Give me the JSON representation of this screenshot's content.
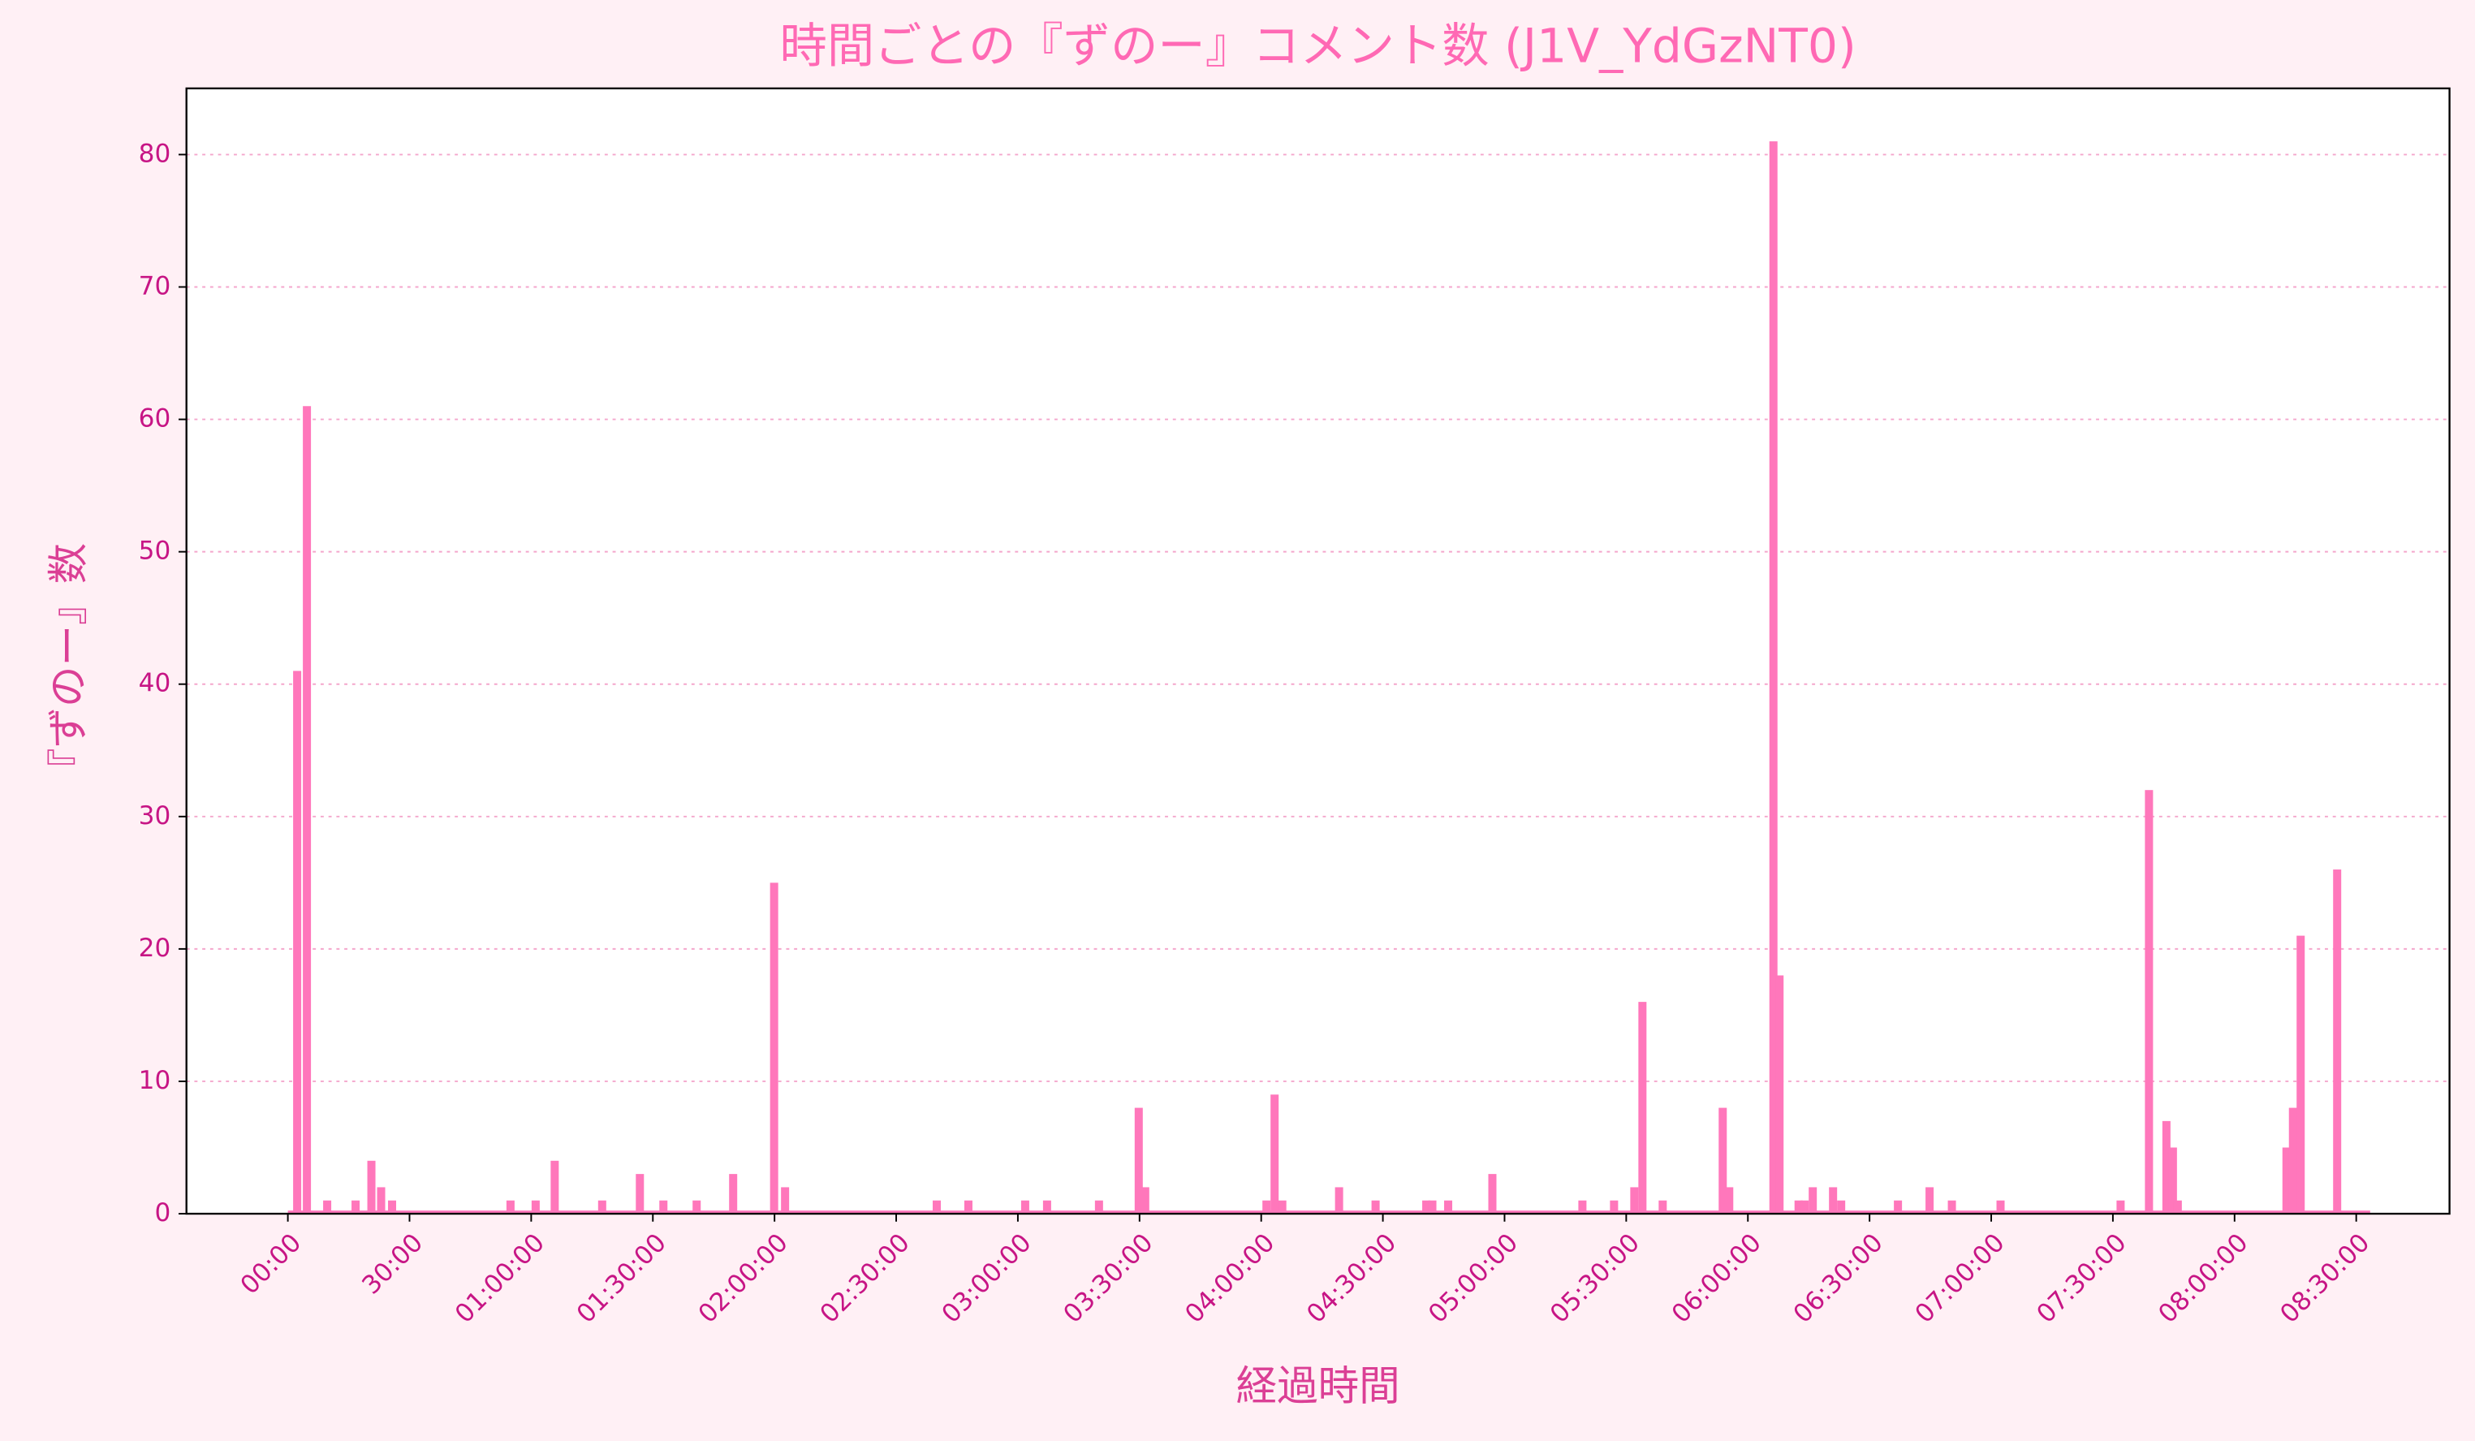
{
  "chart_data": {
    "type": "bar",
    "title": "時間ごとの『ずのー』コメント数 (J1V_YdGzNT0)",
    "xlabel": "経過時間",
    "ylabel": "『ずのー』数",
    "color": "#ff77bb",
    "grid": true,
    "x": [
      2.3,
      4.7,
      9.7,
      16.7,
      20.6,
      23,
      25.7,
      54.9,
      61.1,
      65.8,
      77.5,
      86.8,
      92.6,
      100.8,
      109.8,
      119.9,
      122.6,
      160,
      167.8,
      181.8,
      187.2,
      200,
      209.8,
      211.4,
      241.3,
      243.3,
      245.2,
      259.2,
      268.2,
      280.7,
      282.2,
      286.1,
      297,
      319.2,
      327,
      332,
      334,
      339,
      353.8,
      355.4,
      366.3,
      367.8,
      372.5,
      374,
      376,
      381,
      383,
      397,
      404.8,
      410.3,
      422.3,
      451.9,
      458.9,
      463.2,
      464.8,
      466,
      492.8,
      494.4,
      496.3,
      505.3
    ],
    "values": [
      41,
      61,
      1,
      1,
      4,
      2,
      1,
      1,
      1,
      4,
      1,
      3,
      1,
      1,
      3,
      25,
      2,
      1,
      1,
      1,
      1,
      1,
      8,
      2,
      1,
      9,
      1,
      2,
      1,
      1,
      1,
      1,
      3,
      1,
      1,
      2,
      16,
      1,
      8,
      2,
      81,
      18,
      1,
      1,
      2,
      2,
      1,
      1,
      2,
      1,
      1,
      1,
      32,
      7,
      5,
      1,
      5,
      8,
      21,
      26
    ],
    "xlim": [
      -25,
      533
    ],
    "ylim": [
      0,
      85
    ],
    "xticks": [
      {
        "value": 0,
        "label": "00:00"
      },
      {
        "value": 30,
        "label": "30:00"
      },
      {
        "value": 60,
        "label": "01:00:00"
      },
      {
        "value": 90,
        "label": "01:30:00"
      },
      {
        "value": 120,
        "label": "02:00:00"
      },
      {
        "value": 150,
        "label": "02:30:00"
      },
      {
        "value": 180,
        "label": "03:00:00"
      },
      {
        "value": 210,
        "label": "03:30:00"
      },
      {
        "value": 240,
        "label": "04:00:00"
      },
      {
        "value": 270,
        "label": "04:30:00"
      },
      {
        "value": 300,
        "label": "05:00:00"
      },
      {
        "value": 330,
        "label": "05:30:00"
      },
      {
        "value": 360,
        "label": "06:00:00"
      },
      {
        "value": 390,
        "label": "06:30:00"
      },
      {
        "value": 420,
        "label": "07:00:00"
      },
      {
        "value": 450,
        "label": "07:30:00"
      },
      {
        "value": 480,
        "label": "08:00:00"
      },
      {
        "value": 510,
        "label": "08:30:00"
      }
    ],
    "yticks": [
      0,
      10,
      20,
      30,
      40,
      50,
      60,
      70,
      80
    ]
  }
}
